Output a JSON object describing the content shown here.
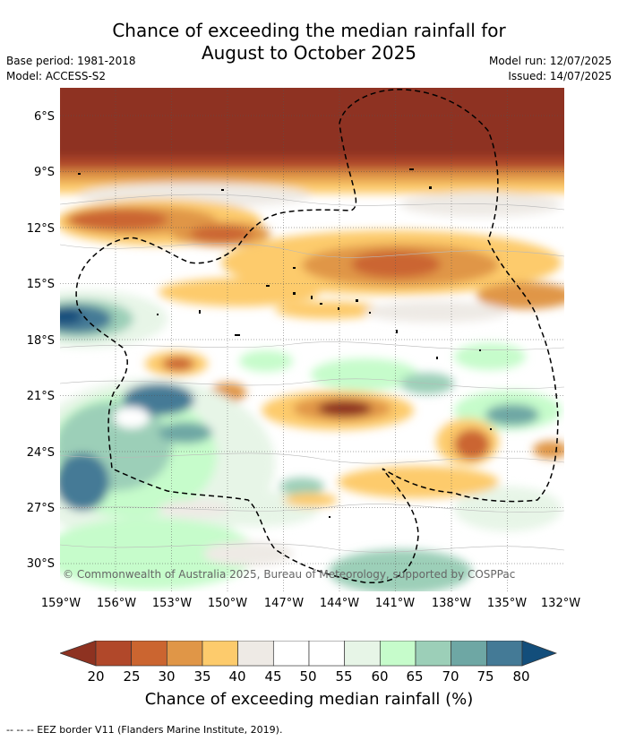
{
  "title": {
    "line1": "Chance of exceeding the median rainfall for",
    "line2": "August to October 2025"
  },
  "meta": {
    "base_period": "Base period: 1981-2018",
    "model": "Model: ACCESS-S2",
    "model_run": "Model run: 12/07/2025",
    "issued": "Issued: 14/07/2025"
  },
  "map": {
    "lat_labels": [
      "6°S",
      "9°S",
      "12°S",
      "15°S",
      "18°S",
      "21°S",
      "24°S",
      "27°S",
      "30°S"
    ],
    "lon_labels": [
      "159°W",
      "156°W",
      "153°W",
      "150°W",
      "147°W",
      "144°W",
      "141°W",
      "138°W",
      "135°W",
      "132°W"
    ],
    "copyright": "© Commonwealth of Australia 2025, Bureau of Meteorology, supported by COSPPac"
  },
  "colorbar": {
    "ticks": [
      "20",
      "25",
      "30",
      "35",
      "40",
      "45",
      "50",
      "55",
      "60",
      "65",
      "70",
      "75",
      "80"
    ],
    "colors": [
      "#8e3221",
      "#b1482a",
      "#cb6530",
      "#e09647",
      "#fdcb6c",
      "#eeeae5",
      "#ffffff",
      "#ffffff",
      "#e7f5e7",
      "#c6fccb",
      "#9ccfb8",
      "#6ea7a4",
      "#447a96",
      "#134e7b"
    ],
    "label": "Chance of exceeding median rainfall (%)"
  },
  "legend_note": "--  --  -- EEZ border V11 (Flanders Marine Institute, 2019)."
}
